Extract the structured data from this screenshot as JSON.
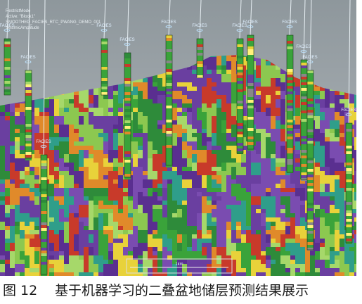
{
  "viewer": {
    "overlay": [
      "RestrictMode",
      "Active: \"Block1\"",
      "SMOOTHED_FACIES_RTC_PWANG_DEMO_001",
      "SeismicAmplitude"
    ],
    "well_label": "FACIES",
    "scale_label": "1km"
  },
  "caption": {
    "figure_number": "图 12",
    "text": "基于机器学习的二叠盆地储层预测结果展示"
  }
}
